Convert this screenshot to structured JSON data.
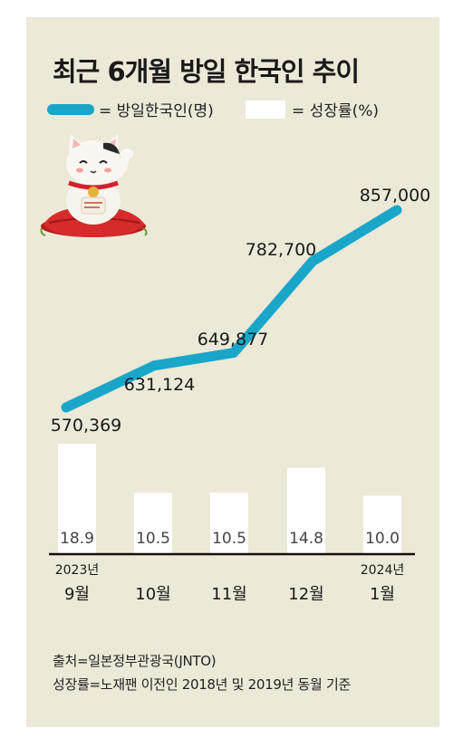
{
  "title": "최근 6개월 방일 한국인 추이",
  "legend": {
    "line_label": "= 방일한국인(명)",
    "bar_label": "= 성장률(%)"
  },
  "colors": {
    "background": "#ece9d8",
    "line": "#1aa6c9",
    "bar": "#ffffff",
    "axis": "#111111"
  },
  "illustration": "maneki-neko-lucky-cat",
  "chart_data": {
    "type": "bar+line",
    "categories": [
      "9월",
      "10월",
      "11월",
      "12월",
      "1월"
    ],
    "year_labels": [
      "2023년",
      "",
      "",
      "",
      "2024년"
    ],
    "series": [
      {
        "name": "방일한국인(명)",
        "type": "line",
        "values": [
          570369,
          631124,
          649877,
          782700,
          857000
        ],
        "labels": [
          "570,369",
          "631,124",
          "649,877",
          "782,700",
          "857,000"
        ]
      },
      {
        "name": "성장률(%)",
        "type": "bar",
        "values": [
          18.9,
          10.5,
          10.5,
          14.8,
          10.0
        ],
        "labels": [
          "18.9",
          "10.5",
          "10.5",
          "14.8",
          "10.0"
        ]
      }
    ]
  },
  "footer": {
    "source": "출처=일본정부관광국(JNTO)",
    "note": "성장률=노재팬 이전인 2018년 및 2019년 동월 기준"
  }
}
